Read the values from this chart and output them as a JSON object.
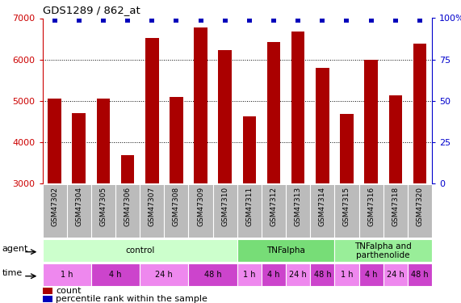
{
  "title": "GDS1289 / 862_at",
  "samples": [
    "GSM47302",
    "GSM47304",
    "GSM47305",
    "GSM47306",
    "GSM47307",
    "GSM47308",
    "GSM47309",
    "GSM47310",
    "GSM47311",
    "GSM47312",
    "GSM47313",
    "GSM47314",
    "GSM47315",
    "GSM47316",
    "GSM47318",
    "GSM47320"
  ],
  "counts": [
    5050,
    4700,
    5050,
    3680,
    6520,
    5090,
    6780,
    6220,
    4620,
    6420,
    6680,
    5800,
    4680,
    6000,
    5140,
    6380
  ],
  "bar_color": "#AA0000",
  "dot_color": "#0000BB",
  "ylim_left": [
    3000,
    7000
  ],
  "yticks_left": [
    3000,
    4000,
    5000,
    6000,
    7000
  ],
  "yticks_right": [
    0,
    25,
    50,
    75,
    100
  ],
  "ytick_labels_right": [
    "0",
    "25",
    "50",
    "75",
    "100%"
  ],
  "bg_color": "#FFFFFF",
  "xbg_color": "#BBBBBB",
  "agent_groups": [
    {
      "label": "control",
      "start": 0,
      "end": 8,
      "color": "#CCFFCC"
    },
    {
      "label": "TNFalpha",
      "start": 8,
      "end": 12,
      "color": "#77DD77"
    },
    {
      "label": "TNFalpha and\nparthenolide",
      "start": 12,
      "end": 16,
      "color": "#99EE99"
    }
  ],
  "time_groups": [
    {
      "label": "1 h",
      "start": 0,
      "end": 2,
      "color": "#EE88EE"
    },
    {
      "label": "4 h",
      "start": 2,
      "end": 4,
      "color": "#CC44CC"
    },
    {
      "label": "24 h",
      "start": 4,
      "end": 6,
      "color": "#EE88EE"
    },
    {
      "label": "48 h",
      "start": 6,
      "end": 8,
      "color": "#CC44CC"
    },
    {
      "label": "1 h",
      "start": 8,
      "end": 9,
      "color": "#EE88EE"
    },
    {
      "label": "4 h",
      "start": 9,
      "end": 10,
      "color": "#CC44CC"
    },
    {
      "label": "24 h",
      "start": 10,
      "end": 11,
      "color": "#EE88EE"
    },
    {
      "label": "48 h",
      "start": 11,
      "end": 12,
      "color": "#CC44CC"
    },
    {
      "label": "1 h",
      "start": 12,
      "end": 13,
      "color": "#EE88EE"
    },
    {
      "label": "4 h",
      "start": 13,
      "end": 14,
      "color": "#CC44CC"
    },
    {
      "label": "24 h",
      "start": 14,
      "end": 15,
      "color": "#EE88EE"
    },
    {
      "label": "48 h",
      "start": 15,
      "end": 16,
      "color": "#CC44CC"
    }
  ],
  "legend_count_label": "count",
  "legend_pct_label": "percentile rank within the sample"
}
